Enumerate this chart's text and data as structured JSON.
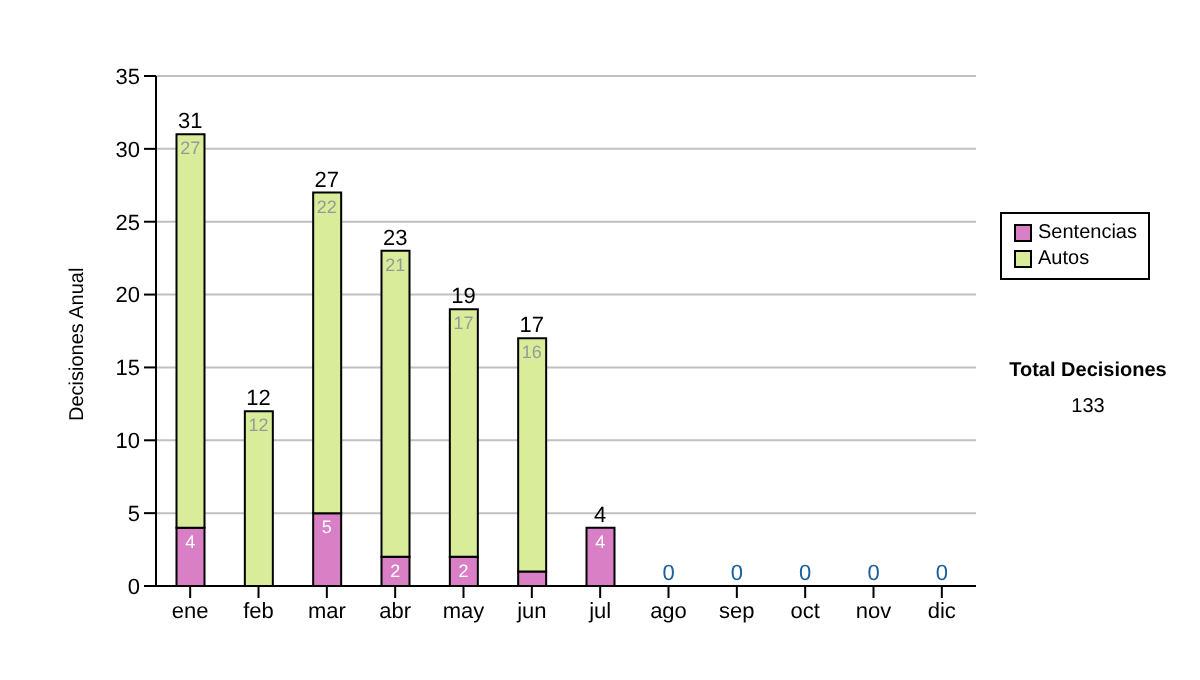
{
  "chart_data": {
    "type": "bar",
    "stacked": true,
    "ylabel": "Decisiones Anual",
    "categories": [
      "ene",
      "feb",
      "mar",
      "abr",
      "may",
      "jun",
      "jul",
      "ago",
      "sep",
      "oct",
      "nov",
      "dic"
    ],
    "series": [
      {
        "name": "Sentencias",
        "color": "#d97fc6",
        "values": [
          4,
          0,
          5,
          2,
          2,
          1,
          4,
          0,
          0,
          0,
          0,
          0
        ],
        "value_labels": [
          "4",
          null,
          "5",
          "2",
          "2",
          null,
          "4",
          null,
          null,
          null,
          null,
          null
        ]
      },
      {
        "name": "Autos",
        "color": "#d8ec9a",
        "values": [
          27,
          12,
          22,
          21,
          17,
          16,
          0,
          0,
          0,
          0,
          0,
          0
        ],
        "value_labels": [
          "27",
          "12",
          "22",
          "21",
          "17",
          "16",
          null,
          null,
          null,
          null,
          null,
          null
        ]
      }
    ],
    "totals": [
      "31",
      "12",
      "27",
      "23",
      "19",
      "17",
      "4",
      "0",
      "0",
      "0",
      "0",
      "0"
    ],
    "ylim": [
      0,
      35
    ],
    "yticks": [
      0,
      5,
      10,
      15,
      20,
      25,
      30,
      35
    ],
    "grid": "y",
    "legend": "right",
    "annotations": [
      "Total Decisiones",
      "133"
    ]
  }
}
